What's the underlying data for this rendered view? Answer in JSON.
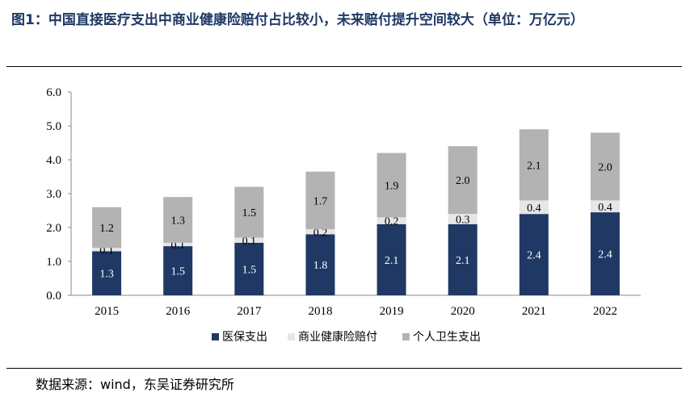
{
  "title": "图1：中国直接医疗支出中商业健康险赔付占比较小，未来赔付提升空间较大（单位：万亿元）",
  "source": "数据来源：wind，东吴证券研究所",
  "chart_data": {
    "type": "bar",
    "stacked": true,
    "categories": [
      "2015",
      "2016",
      "2017",
      "2018",
      "2019",
      "2020",
      "2021",
      "2022"
    ],
    "series": [
      {
        "name": "医保支出",
        "color": "#1f3864",
        "label_color": "#ffffff",
        "values": [
          1.3,
          1.45,
          1.55,
          1.8,
          2.1,
          2.1,
          2.4,
          2.45
        ],
        "labels": [
          "1.3",
          "1.5",
          "1.5",
          "1.8",
          "2.1",
          "2.1",
          "2.4",
          "2.4"
        ]
      },
      {
        "name": "商业健康险赔付",
        "color": "#e6e6e6",
        "label_color": "#000000",
        "values": [
          0.1,
          0.1,
          0.15,
          0.15,
          0.2,
          0.3,
          0.4,
          0.35
        ],
        "labels": [
          "0.1",
          "0.1",
          "0.1",
          "0.2",
          "0.2",
          "0.3",
          "0.4",
          "0.4"
        ]
      },
      {
        "name": "个人卫生支出",
        "color": "#b3b3b3",
        "label_color": "#000000",
        "values": [
          1.2,
          1.35,
          1.5,
          1.7,
          1.9,
          2.0,
          2.1,
          2.0
        ],
        "labels": [
          "1.2",
          "1.3",
          "1.5",
          "1.7",
          "1.9",
          "2.0",
          "2.1",
          "2.0"
        ]
      }
    ],
    "y_ticks": [
      "0.0",
      "1.0",
      "2.0",
      "3.0",
      "4.0",
      "5.0",
      "6.0"
    ],
    "ylim": [
      0,
      6
    ],
    "grid": false,
    "legend_position": "bottom"
  }
}
